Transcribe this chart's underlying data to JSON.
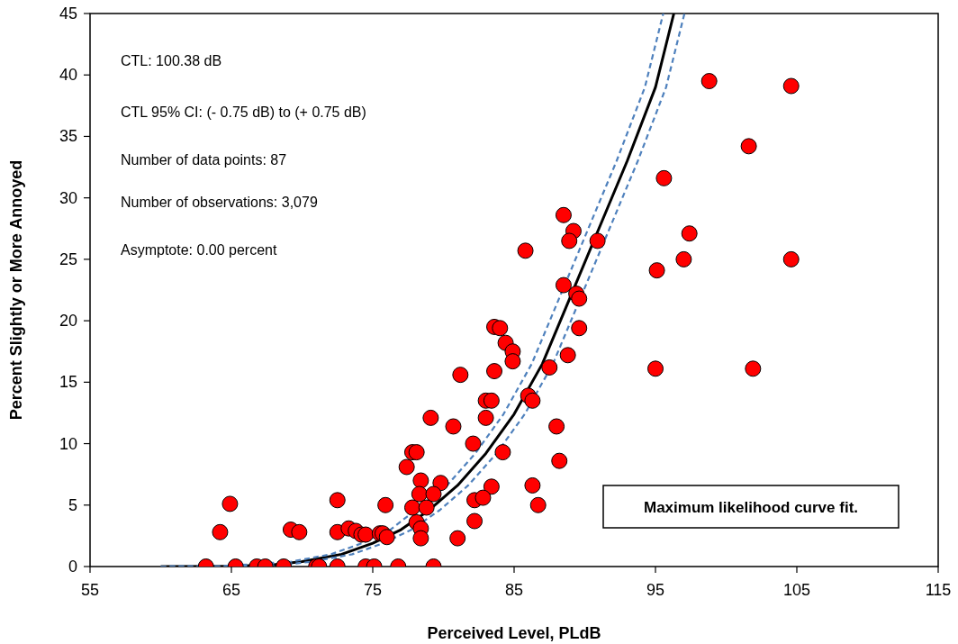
{
  "chart_data": {
    "type": "scatter",
    "xlabel": "Perceived Level, PLdB",
    "ylabel": "Percent Slightly or More Annoyed",
    "xlim": [
      55,
      115
    ],
    "xticks": [
      55,
      65,
      75,
      85,
      95,
      105,
      115
    ],
    "ylim": [
      0,
      45
    ],
    "yticks": [
      0,
      5,
      10,
      15,
      20,
      25,
      30,
      35,
      40,
      45
    ],
    "grid": false,
    "annotations": [
      "CTL:  100.38 dB",
      "CTL 95% CI: (- 0.75 dB) to (+ 0.75 dB)",
      "Number of data points: 87",
      "Number of observations: 3,079",
      "Asymptote: 0.00 percent",
      "Maximum likelihood curve fit."
    ],
    "series": [
      {
        "color": "#ff0000",
        "marker": "circle",
        "x": [
          63.2,
          64.2,
          64.9,
          65.3,
          66.8,
          67.4,
          68.7,
          69.2,
          69.8,
          71.0,
          71.2,
          72.5,
          72.5,
          72.5,
          73.3,
          73.8,
          74.2,
          74.5,
          74.5,
          75.1,
          75.5,
          75.7,
          75.9,
          76.0,
          76.8,
          88.5,
          89.2,
          88.9,
          90.9,
          85.8,
          88.5,
          89.4,
          89.6,
          89.6,
          83.6,
          84.0,
          84.4,
          84.9,
          84.9,
          88.8,
          87.5,
          81.2,
          83.6,
          86.0,
          86.3,
          83.0,
          83.4,
          83.0,
          79.1,
          80.7,
          88.0,
          82.1,
          84.2,
          77.8,
          78.1,
          77.4,
          88.2,
          78.4,
          79.8,
          83.4,
          86.3,
          78.3,
          79.3,
          82.2,
          82.8,
          86.7,
          77.8,
          78.8,
          78.1,
          78.4,
          78.4,
          82.2,
          81.0,
          79.3,
          98.8,
          104.6,
          101.6,
          95.6,
          97.4,
          97.0,
          95.1,
          104.6,
          95.0,
          101.9
        ],
        "values": [
          0,
          2.8,
          5.1,
          0,
          0,
          0,
          0,
          3.0,
          2.8,
          0,
          0,
          5.4,
          2.8,
          0,
          3.1,
          2.9,
          2.6,
          2.6,
          0,
          0,
          2.7,
          2.7,
          5.0,
          2.4,
          0,
          28.6,
          27.3,
          26.5,
          26.5,
          25.7,
          22.9,
          22.2,
          21.8,
          19.4,
          19.5,
          19.4,
          18.2,
          17.5,
          16.7,
          17.2,
          16.2,
          15.6,
          15.9,
          13.9,
          13.5,
          13.5,
          13.5,
          12.1,
          12.1,
          11.4,
          11.4,
          10.0,
          9.3,
          9.3,
          9.3,
          8.1,
          8.6,
          7.0,
          6.8,
          6.5,
          6.6,
          5.9,
          5.9,
          5.4,
          5.6,
          5.0,
          4.8,
          4.8,
          3.6,
          3.1,
          2.3,
          3.7,
          2.3,
          0,
          39.5,
          39.1,
          34.2,
          31.6,
          27.1,
          25.0,
          24.1,
          25.0,
          16.1,
          16.1
        ]
      },
      {
        "type": "line",
        "color": "#000000",
        "marker": "none",
        "line_style": "solid",
        "x": [
          60,
          65,
          68,
          70,
          72.8,
          75,
          77,
          79,
          81,
          83,
          85,
          87,
          89,
          91,
          93,
          95,
          96.3
        ],
        "values": [
          0,
          0.02,
          0.15,
          0.4,
          1.0,
          1.9,
          3.0,
          4.6,
          6.6,
          9.2,
          12.4,
          16.5,
          22,
          27.5,
          33,
          39,
          45
        ]
      },
      {
        "type": "line",
        "color": "#4f81bd",
        "marker": "none",
        "line_style": "dashed",
        "x": [
          60,
          64.25,
          69.25,
          72.05,
          74.25,
          76.25,
          80.25,
          82.25,
          84.25,
          86.25,
          88.25,
          90.25,
          92.25,
          94.25,
          95.55
        ],
        "values": [
          0,
          0.02,
          0.4,
          1.0,
          1.9,
          3.0,
          6.6,
          9.2,
          12.4,
          16.5,
          22,
          27.5,
          33,
          39,
          45
        ]
      },
      {
        "type": "line",
        "color": "#4f81bd",
        "marker": "none",
        "line_style": "dashed",
        "x": [
          60,
          65.75,
          68.75,
          70.75,
          73.55,
          75.75,
          77.75,
          79.75,
          81.75,
          83.75,
          85.75,
          87.75,
          91.75,
          93.75,
          95.75,
          97.05
        ],
        "values": [
          0,
          0.02,
          0.15,
          0.4,
          1.0,
          1.9,
          3.0,
          4.6,
          6.6,
          9.2,
          12.4,
          16.5,
          27.5,
          33,
          39,
          45
        ]
      }
    ]
  }
}
